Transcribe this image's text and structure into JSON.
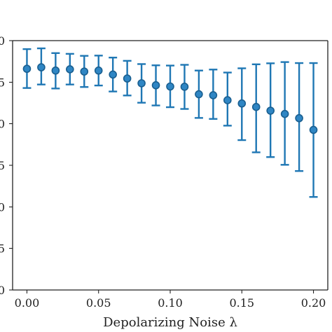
{
  "chart_data": {
    "type": "scatter",
    "title": "",
    "xlabel": "Depolarizing Noise λ",
    "ylabel": "",
    "xlim": [
      -0.01,
      0.21
    ],
    "ylim": [
      0.0,
      1.0
    ],
    "x_ticks": [
      "0.00",
      "0.05",
      "0.10",
      "0.15",
      "0.20"
    ],
    "x_tick_values": [
      0.0,
      0.05,
      0.1,
      0.15,
      0.2
    ],
    "y_ticks": [
      "0",
      "5",
      "0",
      "5",
      "0",
      "5",
      "0"
    ],
    "y_tick_values": [
      0.0,
      0.167,
      0.333,
      0.5,
      0.667,
      0.833,
      1.0
    ],
    "grid": false,
    "legend": "none",
    "colors": {
      "series": "#1f77b4",
      "axis": "#222222"
    },
    "series": [
      {
        "x": [
          0.0,
          0.01,
          0.02,
          0.03,
          0.04,
          0.05,
          0.06,
          0.07,
          0.08,
          0.09,
          0.1,
          0.11,
          0.12,
          0.13,
          0.14,
          0.15,
          0.16,
          0.17,
          0.18,
          0.19,
          0.2
        ],
        "y": [
          0.887,
          0.893,
          0.88,
          0.885,
          0.876,
          0.88,
          0.864,
          0.848,
          0.829,
          0.821,
          0.816,
          0.815,
          0.785,
          0.781,
          0.761,
          0.748,
          0.734,
          0.719,
          0.706,
          0.689,
          0.642
        ],
        "err_low": [
          0.81,
          0.824,
          0.808,
          0.824,
          0.814,
          0.82,
          0.796,
          0.78,
          0.751,
          0.74,
          0.733,
          0.726,
          0.69,
          0.686,
          0.659,
          0.601,
          0.552,
          0.533,
          0.502,
          0.477,
          0.373
        ],
        "err_high": [
          0.966,
          0.969,
          0.95,
          0.947,
          0.939,
          0.94,
          0.932,
          0.919,
          0.906,
          0.901,
          0.9,
          0.903,
          0.88,
          0.884,
          0.872,
          0.889,
          0.905,
          0.909,
          0.914,
          0.91,
          0.91
        ]
      }
    ]
  }
}
